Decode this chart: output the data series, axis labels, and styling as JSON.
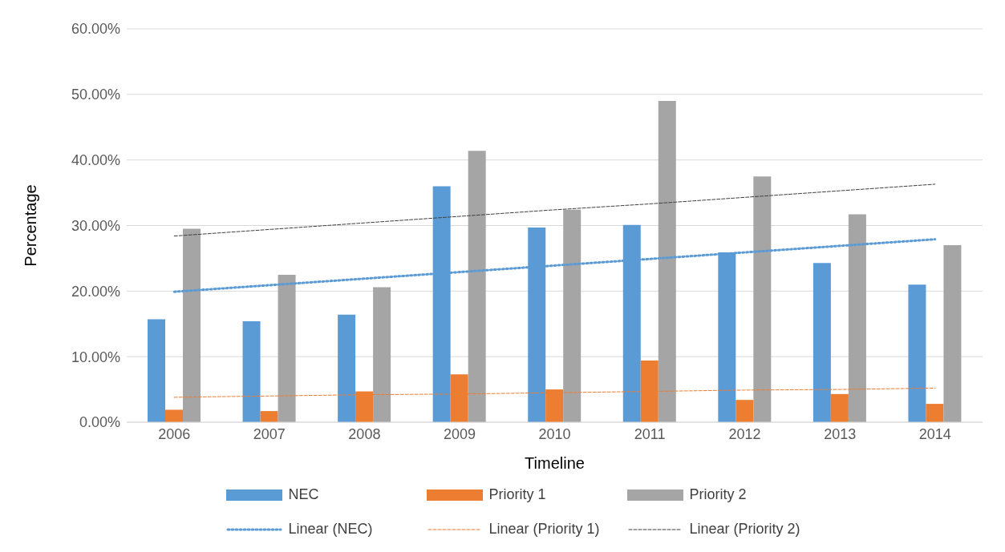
{
  "chart_data": {
    "type": "bar",
    "xlabel": "Timeline",
    "ylabel": "Percentage",
    "categories": [
      "2006",
      "2007",
      "2008",
      "2009",
      "2010",
      "2011",
      "2012",
      "2013",
      "2014"
    ],
    "series": [
      {
        "name": "NEC",
        "color": "#5b9bd5",
        "values": [
          15.7,
          15.4,
          16.4,
          36.0,
          29.7,
          30.1,
          25.9,
          24.3,
          21.0
        ]
      },
      {
        "name": "Priority 1",
        "color": "#ed7d31",
        "values": [
          1.9,
          1.7,
          4.7,
          7.3,
          5.0,
          9.4,
          3.4,
          4.3,
          2.8
        ]
      },
      {
        "name": "Priority 2",
        "color": "#a5a5a5",
        "values": [
          29.5,
          22.5,
          20.6,
          41.4,
          32.4,
          49.0,
          37.5,
          31.7,
          27.0
        ]
      },
      {
        "name": "Linear (NEC)",
        "type": "line",
        "color": "#5b9bd5",
        "line_style": "dotted",
        "values": [
          19.9,
          20.9,
          21.9,
          22.9,
          23.9,
          24.9,
          25.9,
          26.9,
          27.9
        ]
      },
      {
        "name": "Linear (Priority 1)",
        "type": "line",
        "color": "#ed7d31",
        "line_style": "dashed",
        "values": [
          3.8,
          4.0,
          4.2,
          4.3,
          4.5,
          4.7,
          4.9,
          5.0,
          5.2
        ]
      },
      {
        "name": "Linear (Priority 2)",
        "type": "line",
        "color": "#404040",
        "line_style": "dashed",
        "values": [
          28.4,
          29.4,
          30.4,
          31.4,
          32.4,
          33.3,
          34.3,
          35.3,
          36.3
        ]
      }
    ],
    "ylim": [
      0,
      60
    ],
    "yticks": [
      {
        "value": 0,
        "label": "0.00%"
      },
      {
        "value": 10,
        "label": "10.00%"
      },
      {
        "value": 20,
        "label": "20.00%"
      },
      {
        "value": 30,
        "label": "30.00%"
      },
      {
        "value": 40,
        "label": "40.00%"
      },
      {
        "value": 50,
        "label": "50.00%"
      },
      {
        "value": 60,
        "label": "60.00%"
      }
    ],
    "grid": "y",
    "legend": "bottom",
    "marker": "none"
  }
}
